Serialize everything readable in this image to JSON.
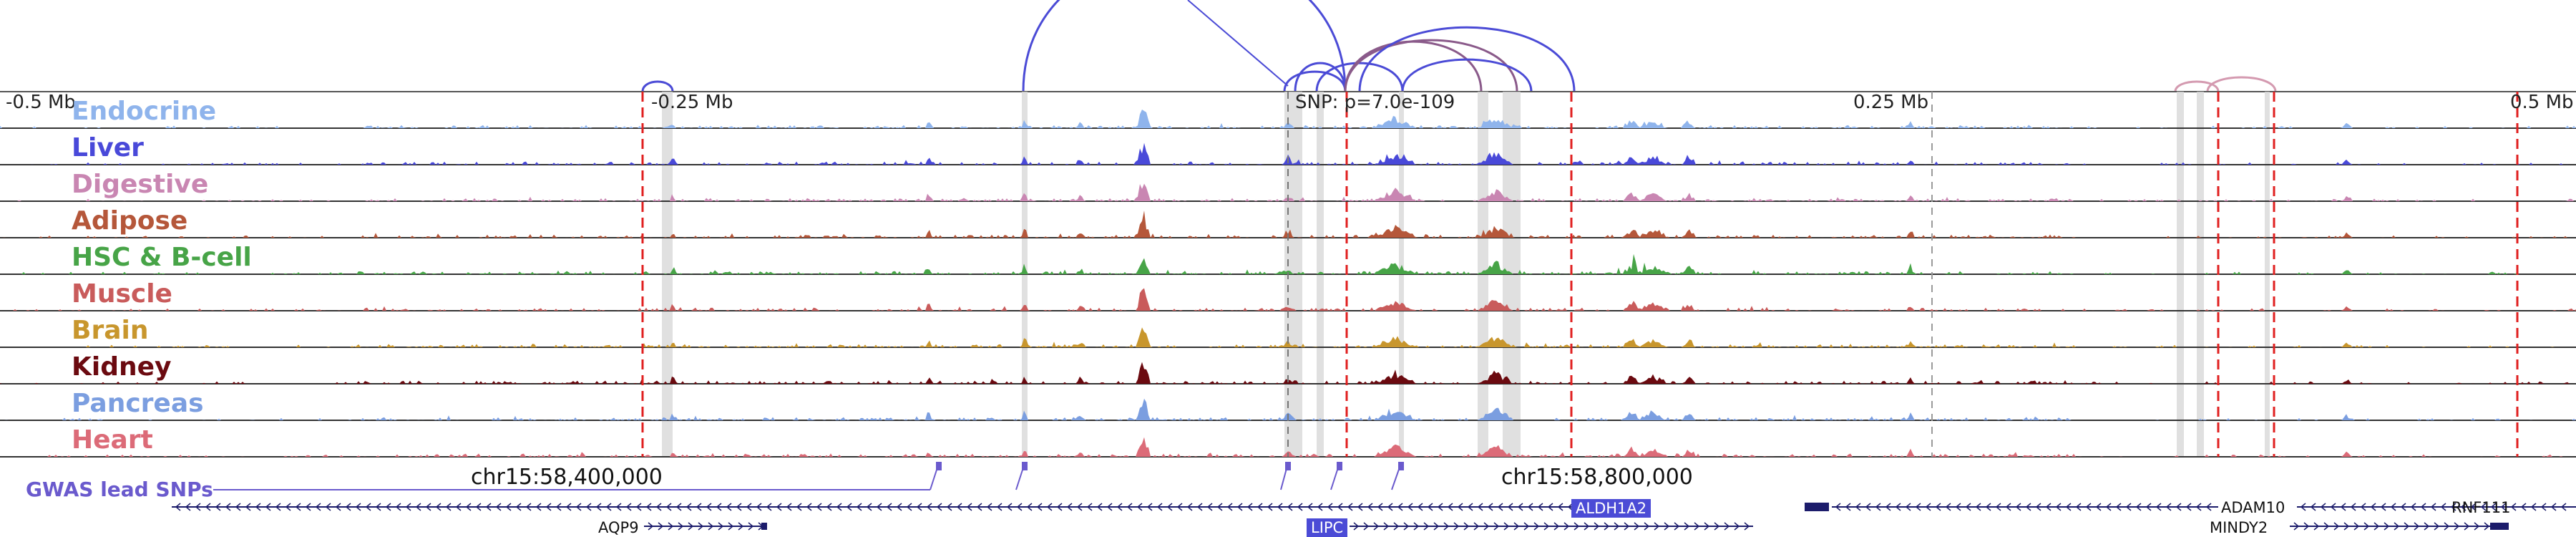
{
  "axis": {
    "ticks": [
      "-0.5 Mb",
      "-0.25 Mb",
      "0.25 Mb",
      "0.5 Mb"
    ],
    "snp_label": "SNP: p=7.0e-109"
  },
  "tracks": [
    {
      "name": "Endocrine",
      "color": "#8fb4ec"
    },
    {
      "name": "Liver",
      "color": "#4949d9"
    },
    {
      "name": "Digestive",
      "color": "#c986b2"
    },
    {
      "name": "Adipose",
      "color": "#b5573a"
    },
    {
      "name": "HSC & B-cell",
      "color": "#47a447"
    },
    {
      "name": "Muscle",
      "color": "#c95b5b"
    },
    {
      "name": "Brain",
      "color": "#c8962d"
    },
    {
      "name": "Kidney",
      "color": "#6b0a10"
    },
    {
      "name": "Pancreas",
      "color": "#7b9ee0"
    },
    {
      "name": "Heart",
      "color": "#dc6b78"
    }
  ],
  "coords": {
    "left": "chr15:58,400,000",
    "right": "chr15:58,800,000"
  },
  "gwas_label": "GWAS lead SNPs",
  "genes": {
    "aqp9": "AQP9",
    "aldh1a2": "ALDH1A2",
    "lipc": "LIPC",
    "adam10": "ADAM10",
    "mindy2": "MINDY2",
    "rnf111": "RNF111"
  },
  "colors": {
    "gwas": "#6a5acd",
    "loop": "#4b4bd6",
    "loop_faint": "#d49ab0",
    "loop_mixed": "#8a5a8a",
    "marker": "#e02020",
    "highlight": "#d8d8d8",
    "gene": "#1c1c6b"
  }
}
